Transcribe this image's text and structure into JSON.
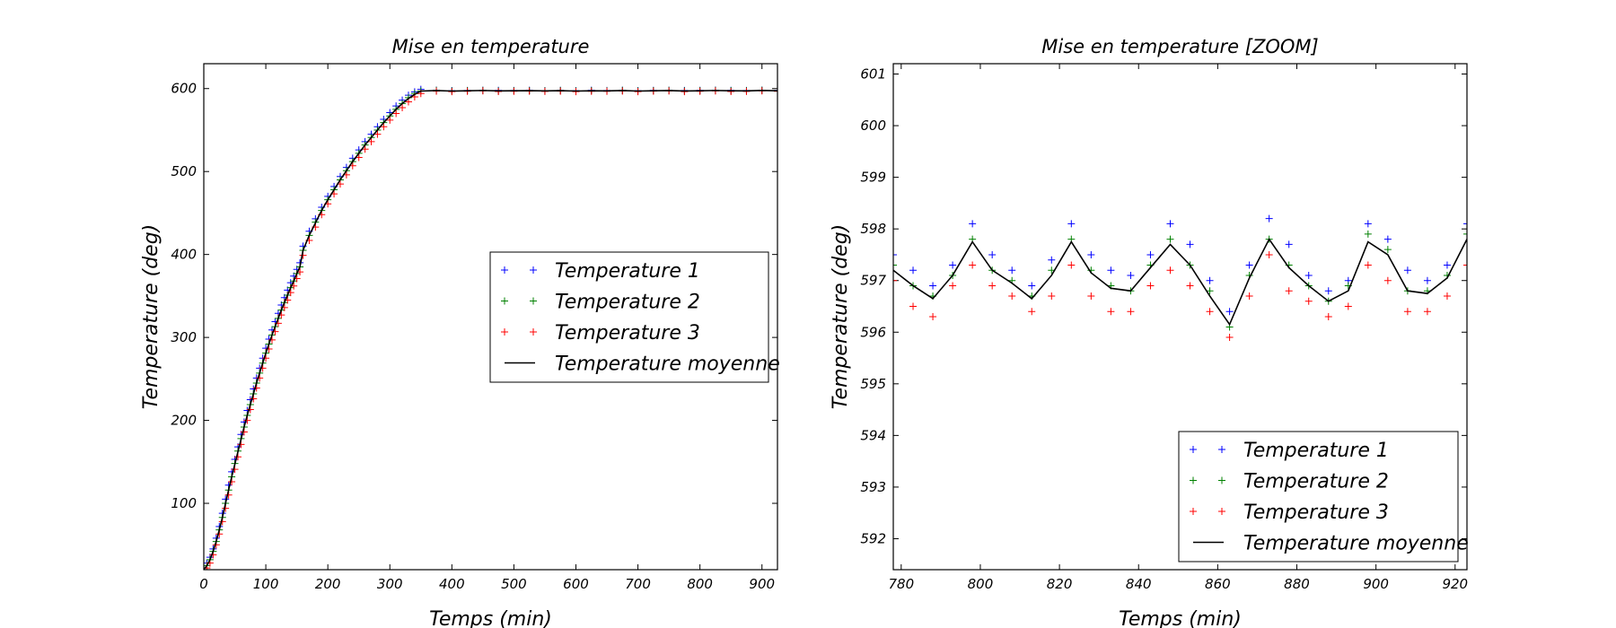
{
  "chart_data": [
    {
      "type": "line",
      "title": "Mise en temperature",
      "xlabel": "Temps (min)",
      "ylabel": "Temperature (deg)",
      "xlim": [
        0,
        925
      ],
      "ylim": [
        20,
        630
      ],
      "xticks": [
        0,
        100,
        200,
        300,
        400,
        500,
        600,
        700,
        800,
        900
      ],
      "yticks": [
        100,
        200,
        300,
        400,
        500,
        600
      ],
      "grid": false,
      "legend_position": "center-right",
      "legend": [
        "Temperature 1",
        "Temperature 2",
        "Temperature 3",
        "Temperature moyenne"
      ],
      "x": [
        0,
        5,
        10,
        15,
        20,
        25,
        30,
        35,
        40,
        45,
        50,
        55,
        60,
        65,
        70,
        75,
        80,
        85,
        90,
        95,
        100,
        105,
        110,
        115,
        120,
        125,
        130,
        135,
        140,
        145,
        150,
        155,
        160,
        170,
        180,
        190,
        200,
        210,
        220,
        230,
        240,
        250,
        260,
        270,
        280,
        290,
        300,
        310,
        320,
        330,
        340,
        350,
        375,
        400,
        425,
        450,
        475,
        500,
        525,
        550,
        575,
        600,
        625,
        650,
        675,
        700,
        725,
        750,
        775,
        800,
        825,
        850,
        875,
        900,
        925
      ],
      "series": [
        {
          "name": "Temperature 1",
          "color": "#0000ff",
          "marker": "+",
          "values": [
            22,
            28,
            35,
            45,
            58,
            72,
            88,
            105,
            122,
            138,
            153,
            168,
            183,
            198,
            212,
            225,
            238,
            251,
            263,
            275,
            287,
            298,
            309,
            319,
            329,
            339,
            348,
            357,
            366,
            374,
            382,
            390,
            410,
            428,
            443,
            457,
            470,
            482,
            494,
            505,
            516,
            526,
            536,
            545,
            554,
            563,
            571,
            579,
            586,
            592,
            596,
            599,
            598.1,
            597.5,
            597.7,
            598.0,
            597.8,
            597.7,
            598.0,
            597.6,
            597.8,
            597.5,
            597.9,
            597.7,
            598.0,
            597.6,
            597.8,
            597.9,
            597.7,
            597.8,
            598.1,
            597.8,
            597.7,
            598.1,
            597.8
          ]
        },
        {
          "name": "Temperature 2",
          "color": "#008000",
          "marker": "+",
          "values": [
            20,
            25,
            32,
            42,
            54,
            68,
            83,
            100,
            116,
            132,
            148,
            163,
            178,
            192,
            206,
            219,
            232,
            245,
            257,
            269,
            281,
            292,
            303,
            313,
            323,
            333,
            342,
            351,
            360,
            368,
            377,
            385,
            405,
            423,
            439,
            453,
            466,
            478,
            490,
            501,
            512,
            522,
            532,
            541,
            550,
            559,
            567,
            575,
            582,
            589,
            594,
            597,
            597.8,
            597.2,
            597.5,
            597.8,
            597.2,
            597.4,
            597.6,
            597.3,
            597.7,
            597.2,
            597.6,
            597.3,
            597.8,
            597.1,
            597.6,
            597.8,
            597.2,
            597.6,
            597.8,
            597.5,
            597.4,
            597.9,
            597.5
          ]
        },
        {
          "name": "Temperature 3",
          "color": "#ff0000",
          "marker": "+",
          "values": [
            18,
            22,
            28,
            38,
            50,
            63,
            78,
            94,
            110,
            126,
            141,
            156,
            171,
            186,
            200,
            213,
            226,
            239,
            251,
            263,
            275,
            286,
            297,
            307,
            317,
            327,
            336,
            345,
            354,
            362,
            371,
            379,
            399,
            417,
            433,
            448,
            461,
            473,
            485,
            496,
            507,
            517,
            527,
            536,
            545,
            554,
            562,
            570,
            577,
            584,
            590,
            594,
            596.9,
            596.4,
            596.7,
            597.3,
            596.5,
            596.7,
            596.9,
            596.6,
            596.9,
            596.4,
            596.8,
            596.7,
            597.0,
            596.4,
            596.9,
            597.2,
            596.4,
            596.7,
            597.2,
            596.5,
            596.6,
            597.3,
            596.7
          ]
        },
        {
          "name": "Temperature moyenne",
          "color": "#000000",
          "marker": "line",
          "values": [
            20,
            25,
            32,
            42,
            54,
            68,
            83,
            100,
            116,
            132,
            147,
            162,
            177,
            192,
            206,
            219,
            232,
            245,
            257,
            269,
            281,
            292,
            303,
            313,
            323,
            333,
            342,
            351,
            360,
            368,
            377,
            385,
            405,
            423,
            438,
            453,
            466,
            478,
            490,
            501,
            512,
            522,
            532,
            541,
            550,
            559,
            567,
            575,
            582,
            588,
            593,
            597,
            597.6,
            597.0,
            597.3,
            597.7,
            597.2,
            597.3,
            597.5,
            597.2,
            597.5,
            597.0,
            597.4,
            597.2,
            597.6,
            597.0,
            597.4,
            597.6,
            597.1,
            597.4,
            597.7,
            597.3,
            597.2,
            597.8,
            597.3
          ]
        }
      ]
    },
    {
      "type": "line",
      "title": "Mise en temperature [ZOOM]",
      "xlabel": "Temps (min)",
      "ylabel": "Temperature (deg)",
      "xlim": [
        778,
        923
      ],
      "ylim": [
        591.4,
        601.2
      ],
      "xticks": [
        780,
        800,
        820,
        840,
        860,
        880,
        900,
        920
      ],
      "yticks": [
        592,
        593,
        594,
        595,
        596,
        597,
        598,
        599,
        600,
        601
      ],
      "grid": false,
      "legend_position": "lower-right",
      "legend": [
        "Temperature 1",
        "Temperature 2",
        "Temperature 3",
        "Temperature moyenne"
      ],
      "x": [
        778,
        783,
        788,
        793,
        798,
        803,
        808,
        813,
        818,
        823,
        828,
        833,
        838,
        843,
        848,
        853,
        858,
        863,
        868,
        873,
        878,
        883,
        888,
        893,
        898,
        903,
        908,
        913,
        918,
        923
      ],
      "series": [
        {
          "name": "Temperature 1",
          "color": "#0000ff",
          "marker": "+",
          "values": [
            597.5,
            597.2,
            596.9,
            597.3,
            598.1,
            597.5,
            597.2,
            596.9,
            597.4,
            598.1,
            597.5,
            597.2,
            597.1,
            597.5,
            598.1,
            597.7,
            597.0,
            596.4,
            597.3,
            598.2,
            597.7,
            597.1,
            596.8,
            597.0,
            598.1,
            597.8,
            597.2,
            597.0,
            597.3,
            598.1
          ]
        },
        {
          "name": "Temperature 2",
          "color": "#008000",
          "marker": "+",
          "values": [
            597.3,
            596.9,
            596.7,
            597.1,
            597.8,
            597.2,
            597.0,
            596.7,
            597.2,
            597.8,
            597.2,
            596.9,
            596.8,
            597.3,
            597.8,
            597.3,
            596.8,
            596.1,
            597.1,
            597.8,
            597.3,
            596.9,
            596.6,
            596.9,
            597.9,
            597.6,
            596.8,
            596.8,
            597.1,
            597.9
          ]
        },
        {
          "name": "Temperature 3",
          "color": "#ff0000",
          "marker": "+",
          "values": [
            597.0,
            596.5,
            596.3,
            596.9,
            597.3,
            596.9,
            596.7,
            596.4,
            596.7,
            597.3,
            596.7,
            596.4,
            596.4,
            596.9,
            597.2,
            596.9,
            596.4,
            595.9,
            596.7,
            597.5,
            596.8,
            596.6,
            596.3,
            596.5,
            597.3,
            597.0,
            596.4,
            596.4,
            596.7,
            597.3
          ]
        },
        {
          "name": "Temperature moyenne",
          "color": "#000000",
          "marker": "line",
          "values": [
            597.2,
            596.9,
            596.65,
            597.1,
            597.75,
            597.2,
            596.95,
            596.65,
            597.1,
            597.75,
            597.15,
            596.85,
            596.8,
            597.25,
            597.7,
            597.3,
            596.7,
            596.15,
            597.05,
            597.8,
            597.25,
            596.9,
            596.6,
            596.8,
            597.75,
            597.5,
            596.8,
            596.75,
            597.05,
            597.8
          ]
        }
      ]
    }
  ]
}
